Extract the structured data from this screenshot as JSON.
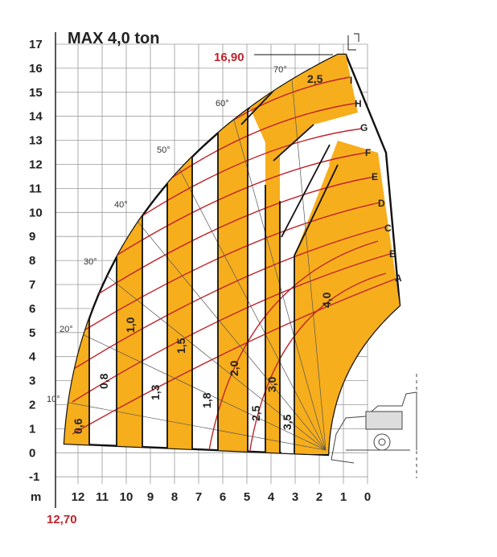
{
  "title": "MAX 4,0 ton",
  "max_height_label": "16,90",
  "max_reach_label": "12,70",
  "unit_label": "m",
  "y_ticks": [
    "17",
    "16",
    "15",
    "14",
    "13",
    "12",
    "11",
    "10",
    "9",
    "8",
    "7",
    "6",
    "5",
    "4",
    "3",
    "2",
    "1",
    "0",
    "-1"
  ],
  "x_ticks": [
    "12",
    "11",
    "10",
    "9",
    "8",
    "7",
    "6",
    "5",
    "4",
    "3",
    "2",
    "1",
    "0"
  ],
  "angles": [
    "10°",
    "20°",
    "30°",
    "40°",
    "50°",
    "60°",
    "70°"
  ],
  "arc_labels": [
    "A",
    "B",
    "C",
    "D",
    "E",
    "F",
    "G",
    "H",
    "I"
  ],
  "capacities": [
    "0,6",
    "0,8",
    "1,0",
    "1,3",
    "1,5",
    "1,8",
    "2,0",
    "2,5",
    "3,0",
    "3,5",
    "4,0",
    "2,5"
  ],
  "colors": {
    "fill": "#f7ae1c",
    "arc": "#c0232b",
    "grid": "#9a9a9a",
    "outline": "#111111"
  },
  "icons": [
    "telehandler-icon"
  ]
}
